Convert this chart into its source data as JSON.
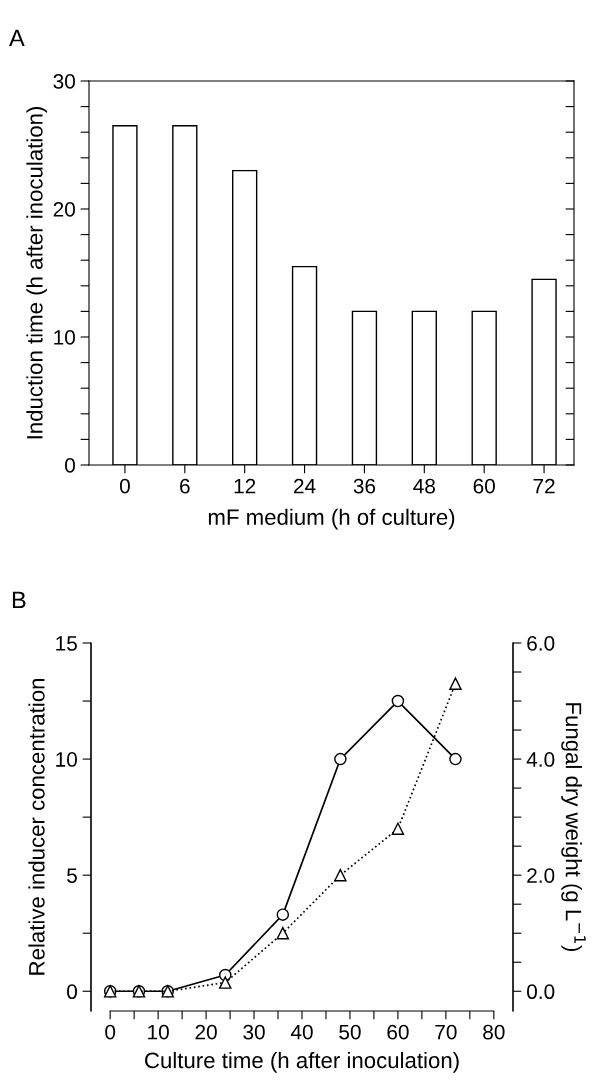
{
  "chart_data": [
    {
      "type": "bar",
      "annotations": [
        "A"
      ],
      "xlabel": "mF medium (h of culture)",
      "ylabel": "Induction time (h after inoculation)",
      "categories": [
        "0",
        "6",
        "12",
        "24",
        "36",
        "48",
        "60",
        "72"
      ],
      "values": [
        26.5,
        26.5,
        23,
        15.5,
        12,
        12,
        12,
        14.5
      ],
      "color": "#ffffff",
      "ylim": [
        0,
        30
      ],
      "yticks": [
        0,
        {
          "value": 2,
          "label": null
        },
        {
          "value": 4,
          "label": null
        },
        {
          "value": 6,
          "label": null
        },
        {
          "value": 8,
          "label": null
        },
        10,
        {
          "value": 12,
          "label": null
        },
        {
          "value": 14,
          "label": null
        },
        {
          "value": 16,
          "label": null
        },
        {
          "value": 18,
          "label": null
        },
        20,
        {
          "value": 22,
          "label": null
        },
        {
          "value": 24,
          "label": null
        },
        {
          "value": 26,
          "label": null
        },
        {
          "value": 28,
          "label": null
        },
        30
      ],
      "grid": false,
      "legend": false
    },
    {
      "type": "line",
      "annotations": [
        "B"
      ],
      "xlabel": "Culture time (h after inoculation)",
      "ylabel": "Relative inducer concentration",
      "y2label": "Fungal dry weight (g L$^{−1}$)",
      "x": [
        0,
        6,
        12,
        24,
        36,
        48,
        60,
        72
      ],
      "series": [
        {
          "color": "#000000",
          "marker": "circle",
          "line_style": "solid",
          "values": [
            0,
            0,
            0,
            0.7,
            3.3,
            10,
            12.5,
            10
          ]
        },
        {
          "color": "#000000",
          "marker": "triangle",
          "line_style": "dotted",
          "axis": "y2",
          "values": [
            0,
            0,
            0,
            0.15,
            1.0,
            2.0,
            2.8,
            5.3
          ]
        }
      ],
      "xlim": [
        -4,
        84
      ],
      "xticks": [
        0,
        {
          "value": 5,
          "label": null
        },
        10,
        {
          "value": 15,
          "label": null
        },
        20,
        {
          "value": 25,
          "label": null
        },
        30,
        {
          "value": 35,
          "label": null
        },
        40,
        {
          "value": 45,
          "label": null
        },
        50,
        {
          "value": 55,
          "label": null
        },
        60,
        {
          "value": 65,
          "label": null
        },
        70,
        {
          "value": 75,
          "label": null
        },
        80
      ],
      "ylim": [
        -0.85,
        15
      ],
      "yticks": [
        0,
        {
          "value": 2.5,
          "label": null
        },
        5,
        {
          "value": 7.5,
          "label": null
        },
        10,
        {
          "value": 12.5,
          "label": null
        },
        15
      ],
      "y2lim": [
        -0.34,
        6
      ],
      "y2ticks": [
        {
          "value": 0,
          "label": "0.0"
        },
        {
          "value": 0.5,
          "label": null
        },
        {
          "value": 1,
          "label": null
        },
        {
          "value": 1.5,
          "label": null
        },
        {
          "value": 2,
          "label": "2.0"
        },
        {
          "value": 2.5,
          "label": null
        },
        {
          "value": 3,
          "label": null
        },
        {
          "value": 3.5,
          "label": null
        },
        {
          "value": 4,
          "label": "4.0"
        },
        {
          "value": 4.5,
          "label": null
        },
        {
          "value": 5,
          "label": null
        },
        {
          "value": 5.5,
          "label": null
        },
        {
          "value": 6,
          "label": "6.0"
        }
      ],
      "grid": false,
      "legend": false
    }
  ]
}
